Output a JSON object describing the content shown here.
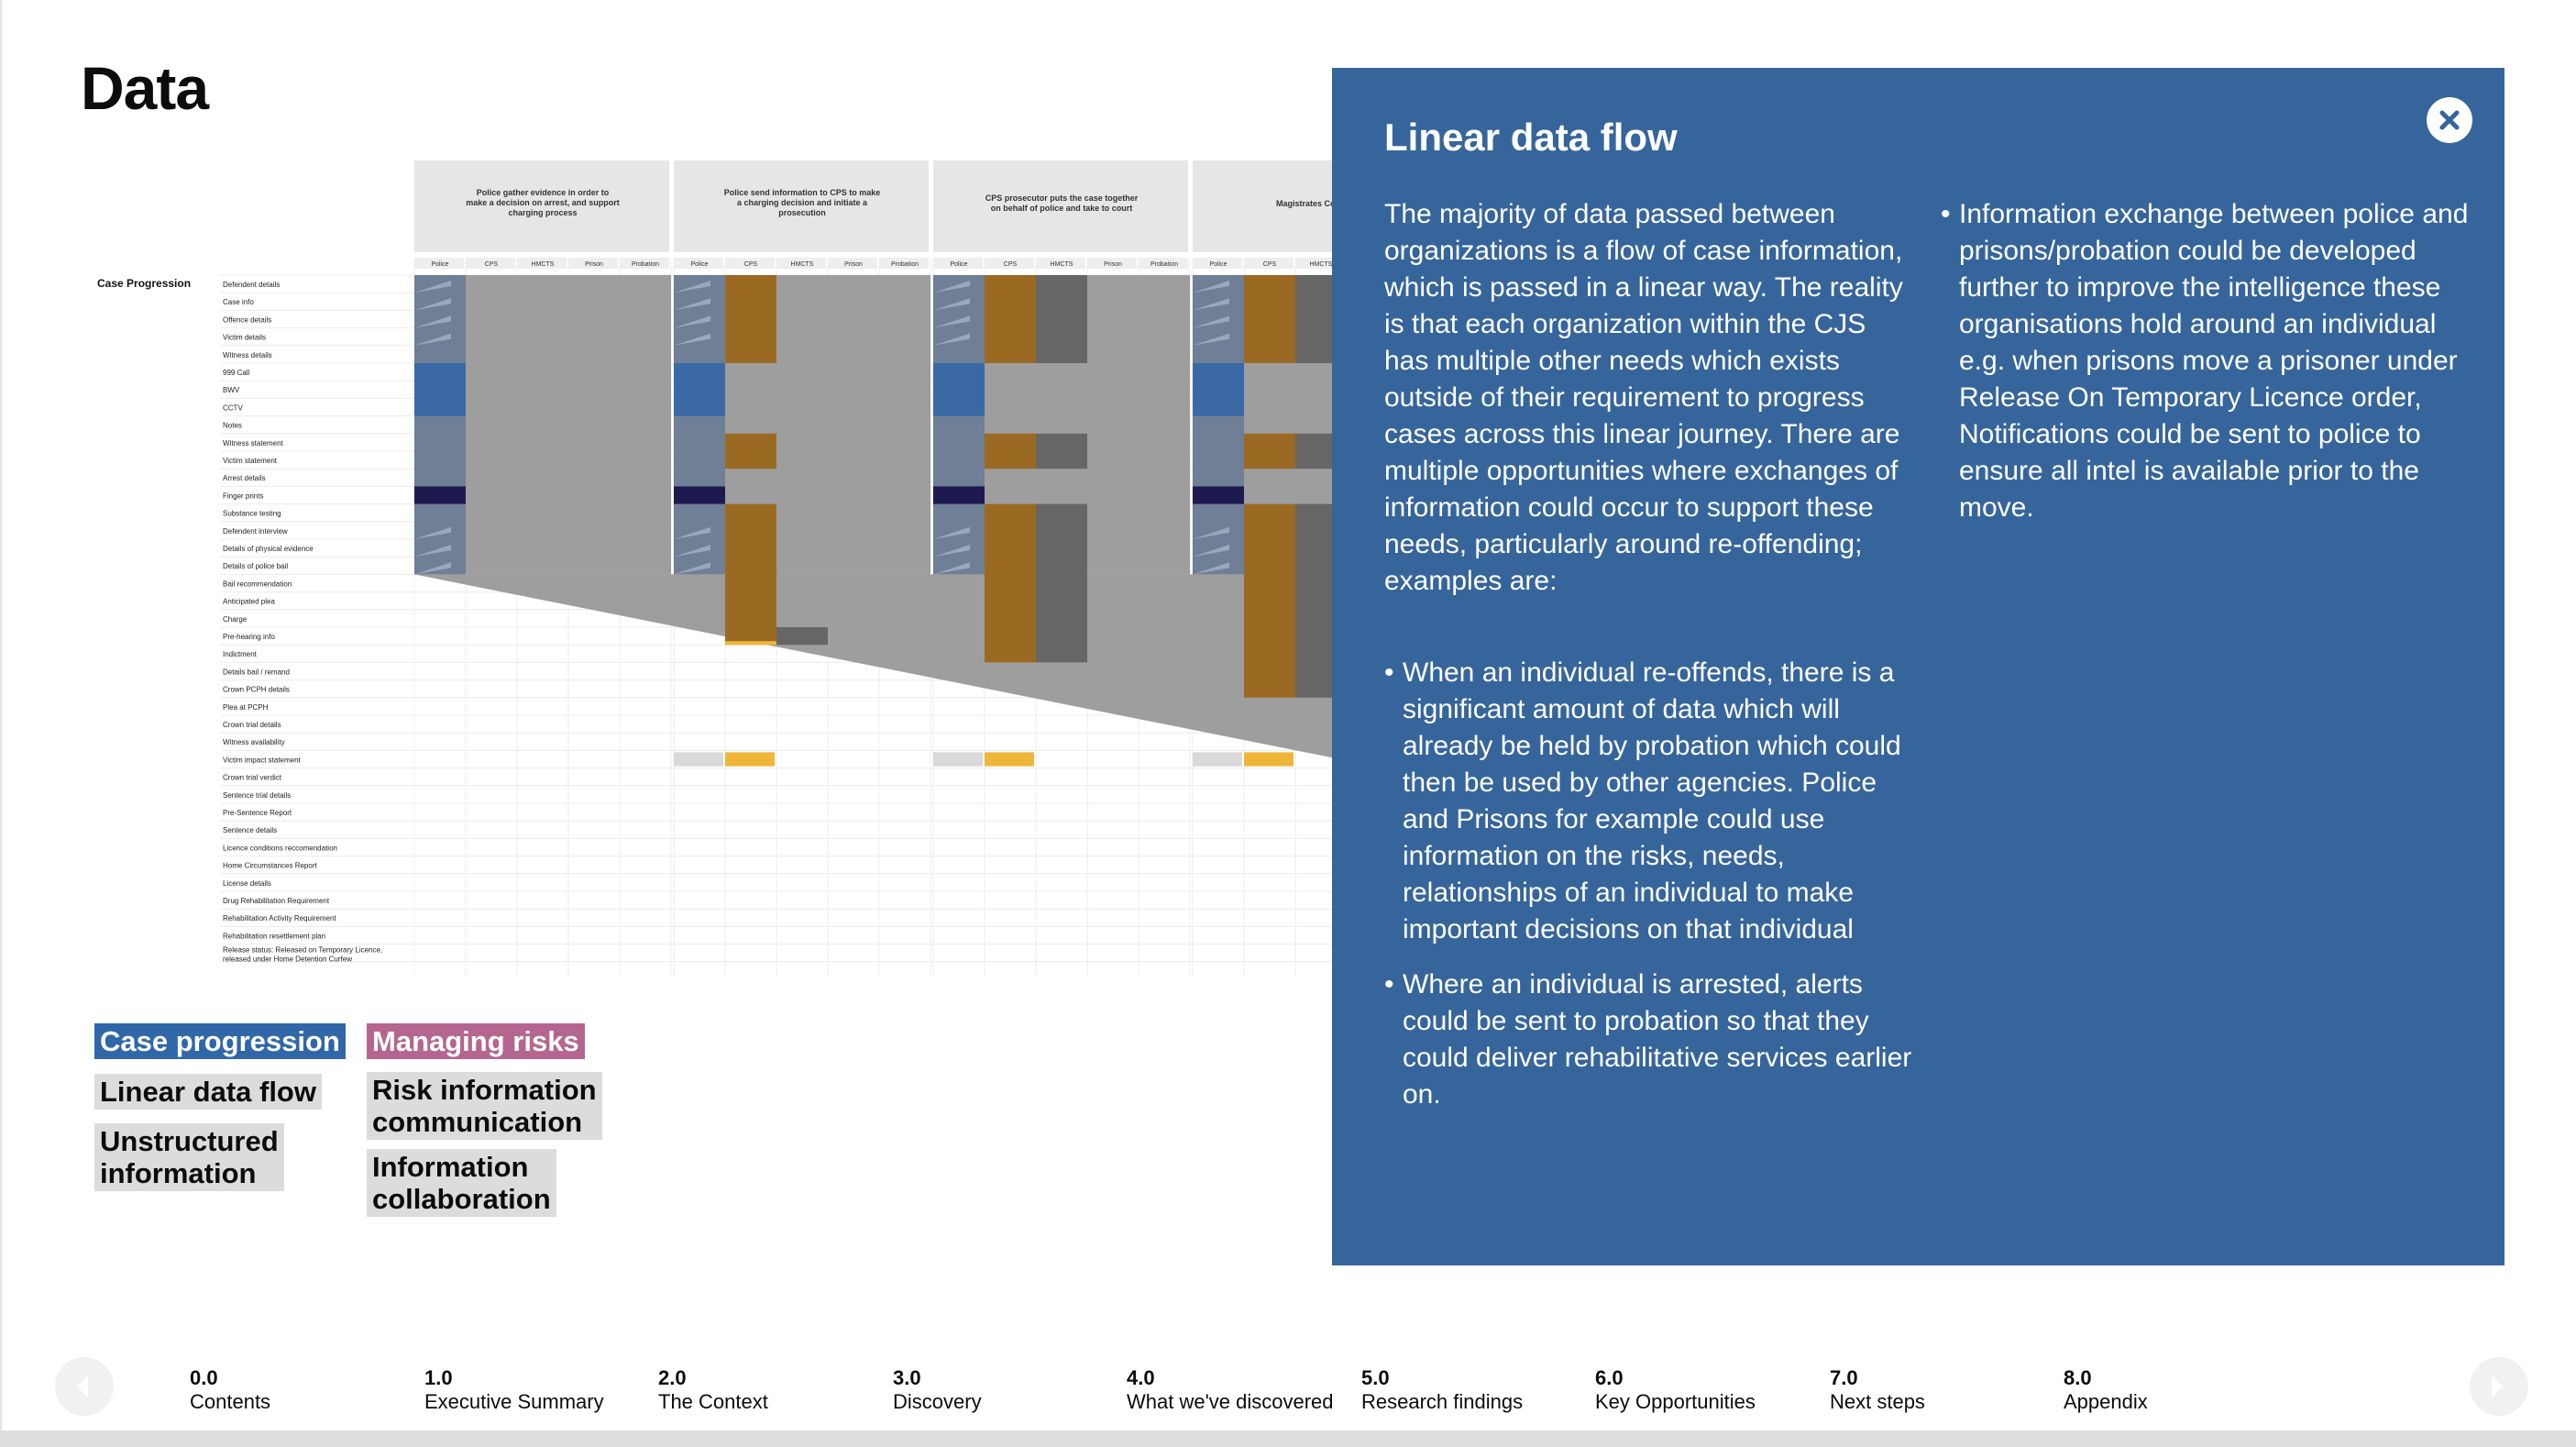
{
  "page": {
    "title": "Data"
  },
  "matrix": {
    "section_label": "Case Progression",
    "stage_headers": [
      "Police gather evidence in order to make a decision on arrest, and support charging process",
      "Police send information to CPS to make a charging decision and initiate a prosecution",
      "CPS prosecutor puts the case together on behalf of police and take to court",
      "Magistrates Court hold"
    ],
    "agencies": [
      "Police",
      "CPS",
      "HMCTS",
      "Prison",
      "Probation"
    ],
    "rows": [
      "Defendent details",
      "Case info",
      "Offence details",
      "Victim details",
      "Witness details",
      "999 Call",
      "BWV",
      "CCTV",
      "Notes",
      "Witness statement",
      "Victim statement",
      "Arrest details",
      "Finger prints",
      "Substance testing",
      "Defendent interview",
      "Details of physical evidence",
      "Details of police bail",
      "Bail recommendation",
      "Anticipated plea",
      "Charge",
      "Pre-hearing info",
      "Indictment",
      "Details bail / remand",
      "Crown PCPH details",
      "Plea at PCPH",
      "Crown trial details",
      "Witness availability",
      "Victim impact statement",
      "Crown trial verdict",
      "Sentence trial details",
      "Pre-Sentence Report",
      "Sentence details",
      "Licence conditions reccomendation",
      "Home Circumstances Report",
      "License details",
      "Drug Rehabilitation Requirement",
      "Rehabilitation Activity Requirement",
      "Rehabilitation resettlement plan",
      "Release status: Released on Temporary Licence, released under Home Detention Curfew"
    ]
  },
  "tags": {
    "case_progression": "Case progression",
    "managing_risks": "Managing risks",
    "linear_data_flow": "Linear data flow",
    "unstructured_1": "Unstructured",
    "unstructured_2": "information",
    "risk_info_1": "Risk information",
    "risk_info_2": "communication",
    "info_collab_1": "Information",
    "info_collab_2": "collaboration"
  },
  "panel": {
    "title": "Linear data flow",
    "intro": "The majority of data passed between organizations is a flow of case information, which is passed in a linear way.  The reality is that each organization within the CJS has multiple other needs which exists outside of their requirement to progress cases across this linear journey. There are multiple opportunities where exchanges of information could occur to support these needs, particularly around re-offending; examples are:",
    "bullet1": "When an individual re-offends, there is a significant amount of data which will already be held by probation which could then be used by other agencies. Police and Prisons for example could use information on the risks, needs, relationships of an individual to make important decisions on that individual",
    "bullet2": "Where an individual is arrested, alerts could be sent to probation so that they could deliver rehabilitative services earlier on.",
    "bullet3": "Information exchange between police and prisons/probation could be developed further to improve the intelligence these organisations hold around an individual e.g. when prisons move a prisoner under Release On Temporary Licence order, Notifications could be sent to police to ensure all intel is available prior to the move.",
    "close_icon": "close-icon"
  },
  "nav": {
    "items": [
      {
        "num": "0.0",
        "label": "Contents"
      },
      {
        "num": "1.0",
        "label": "Executive Summary"
      },
      {
        "num": "2.0",
        "label": "The Context"
      },
      {
        "num": "3.0",
        "label": "Discovery"
      },
      {
        "num": "4.0",
        "label": "What we've discovered"
      },
      {
        "num": "5.0",
        "label": "Research findings"
      },
      {
        "num": "6.0",
        "label": "Key Opportunities"
      },
      {
        "num": "7.0",
        "label": "Next steps"
      },
      {
        "num": "8.0",
        "label": "Appendix"
      }
    ]
  },
  "colors": {
    "panel": "#36659c",
    "blue_cell": "#3a69a6",
    "navy_cell": "#1e1a4f",
    "brown_cell": "#9a6a23",
    "yellow_cell": "#f0b63a",
    "grey_cell": "#9e9e9e",
    "dark_grey_cell": "#666666"
  }
}
